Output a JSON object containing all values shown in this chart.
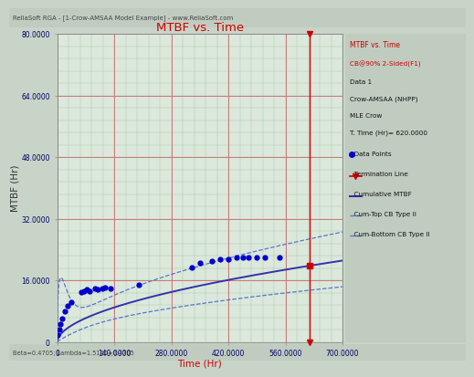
{
  "title": "MTBF vs. Time",
  "title_color": "#cc0000",
  "xlabel": "Time (Hr)",
  "ylabel": "MTBF (Hr)",
  "xlabel_color": "#cc0000",
  "ylabel_color": "#333333",
  "xlim": [
    0,
    700
  ],
  "ylim": [
    0,
    80
  ],
  "xticks": [
    0,
    140,
    280,
    420,
    560,
    700
  ],
  "yticks": [
    0,
    16,
    32,
    48,
    64,
    80
  ],
  "xtick_labels": [
    "0",
    "140.0000",
    "280.0000",
    "420.0000",
    "560.0000",
    "700.0000"
  ],
  "ytick_labels": [
    "0",
    "16.0000",
    "32.0000",
    "48.0000",
    "64.0000",
    "80.0000"
  ],
  "termination_time": 620,
  "plot_bg_color": "#dce8dc",
  "outer_bg_color": "#c8d4c8",
  "header_bg_color": "#c0ccc0",
  "footer_bg_color": "#c0ccc0",
  "grid_color_major": "#cc7777",
  "grid_color_minor": "#aaccaa",
  "cum_mtbf_color": "#3333aa",
  "cum_top_color": "#5577cc",
  "cum_bot_color": "#5577cc",
  "termination_line_color": "#cc0000",
  "data_point_color": "#0000cc",
  "legend_red": "#cc0000",
  "legend_black": "#111111",
  "beta": 0.4705,
  "lambda": 1.514,
  "header_text": "ReliaSoft RGA - [1-Crow-AMSAA Model Example] - www.ReliaSoft.com",
  "footer_text": "Beta=0.4705; Lambda=1.5140=0.4705",
  "legend_title": "MTBF vs. Time",
  "legend_subtitle": "CB@90% 2-Sided(F1)",
  "legend_data1": "Data 1",
  "legend_crow": "Crow-AMSAA (NHPP)",
  "legend_mle": "MLE Crow",
  "legend_ttime": "T. Time (Hr)= 620.0000",
  "legend_dp": "Data Points",
  "legend_term": "Termination Line",
  "legend_cum": "Cumulative MTBF",
  "legend_top": "Cum-Top CB Type II",
  "legend_bot": "Cum-Bottom CB Type II",
  "data_points_x": [
    2,
    5,
    8,
    12,
    18,
    26,
    35,
    60,
    65,
    72,
    80,
    92,
    100,
    110,
    118,
    130,
    200,
    330,
    350,
    380,
    400,
    420,
    440,
    455,
    470,
    490,
    510,
    545
  ],
  "data_points_y": [
    1.8,
    3.2,
    4.8,
    6.2,
    8.0,
    9.5,
    10.5,
    13.0,
    13.3,
    13.7,
    13.3,
    14.0,
    13.7,
    14.0,
    14.3,
    14.0,
    14.8,
    19.5,
    20.5,
    21.0,
    21.5,
    21.5,
    22.0,
    22.0,
    22.0,
    22.0,
    22.0,
    22.0
  ]
}
